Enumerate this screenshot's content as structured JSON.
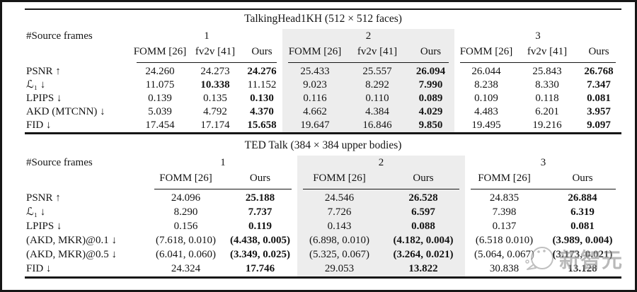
{
  "watermark": {
    "text": "新智元"
  },
  "tables": [
    {
      "title": "TalkingHead1KH (512 × 512 faces)",
      "corner_label": "#Source frames",
      "groups": [
        {
          "frames": "1",
          "shaded": false,
          "columns": [
            "FOMM [26]",
            "fv2v [41]",
            "Ours"
          ]
        },
        {
          "frames": "2",
          "shaded": true,
          "columns": [
            "FOMM [26]",
            "fv2v [41]",
            "Ours"
          ]
        },
        {
          "frames": "3",
          "shaded": false,
          "columns": [
            "FOMM [26]",
            "fv2v [41]",
            "Ours"
          ]
        }
      ],
      "rows": [
        {
          "label": "PSNR ↑",
          "cells": [
            "24.260",
            "24.273",
            "**24.276**",
            "25.433",
            "25.557",
            "**26.094**",
            "26.044",
            "25.843",
            "**26.768**"
          ]
        },
        {
          "label": "ℒ₁ ↓",
          "cells": [
            "11.075",
            "**10.338**",
            "11.152",
            "9.023",
            "8.292",
            "**7.990**",
            "8.238",
            "8.330",
            "**7.347**"
          ]
        },
        {
          "label": "LPIPS ↓",
          "cells": [
            "0.139",
            "0.135",
            "**0.130**",
            "0.116",
            "0.110",
            "**0.089**",
            "0.109",
            "0.118",
            "**0.081**"
          ]
        },
        {
          "label": "AKD (MTCNN) ↓",
          "cells": [
            "5.039",
            "4.792",
            "**4.370**",
            "4.662",
            "4.384",
            "**4.029**",
            "4.483",
            "6.201",
            "**3.957**"
          ]
        },
        {
          "label": "FID ↓",
          "cells": [
            "17.454",
            "17.174",
            "**15.658**",
            "19.647",
            "16.846",
            "**9.850**",
            "19.495",
            "19.216",
            "**9.097**"
          ]
        }
      ]
    },
    {
      "title": "TED Talk (384 × 384 upper bodies)",
      "corner_label": "#Source frames",
      "groups": [
        {
          "frames": "1",
          "shaded": false,
          "columns": [
            "FOMM [26]",
            "Ours"
          ]
        },
        {
          "frames": "2",
          "shaded": true,
          "columns": [
            "FOMM [26]",
            "Ours"
          ]
        },
        {
          "frames": "3",
          "shaded": false,
          "columns": [
            "FOMM [26]",
            "Ours"
          ]
        }
      ],
      "rows": [
        {
          "label": "PSNR ↑",
          "cells": [
            "24.096",
            "**25.188**",
            "24.546",
            "**26.528**",
            "24.835",
            "**26.884**"
          ]
        },
        {
          "label": "ℒ₁ ↓",
          "cells": [
            "8.290",
            "**7.737**",
            "7.726",
            "**6.597**",
            "7.398",
            "**6.319**"
          ]
        },
        {
          "label": "LPIPS ↓",
          "cells": [
            "0.156",
            "**0.119**",
            "0.143",
            "**0.088**",
            "0.137",
            "**0.081**"
          ]
        },
        {
          "label": "(AKD, MKR)@0.1 ↓",
          "cells": [
            "(7.618, 0.010)",
            "**(4.438, 0.005)**",
            "(6.898, 0.010)",
            "**(4.182, 0.004)**",
            "(6.518 0.010)",
            "**(3.989, 0.004)**"
          ]
        },
        {
          "label": "(AKD, MKR)@0.5 ↓",
          "cells": [
            "(6.041, 0.060)",
            "**(3.349, 0.025)**",
            "(5.325, 0.067)",
            "**(3.264, 0.021)**",
            "(5.064, 0.067)",
            "**(3.173, 0.021)**"
          ]
        },
        {
          "label": "FID ↓",
          "cells": [
            "24.324",
            "**17.746**",
            "29.053",
            "**13.822**",
            "30.838",
            "**13.128**"
          ]
        }
      ]
    }
  ]
}
